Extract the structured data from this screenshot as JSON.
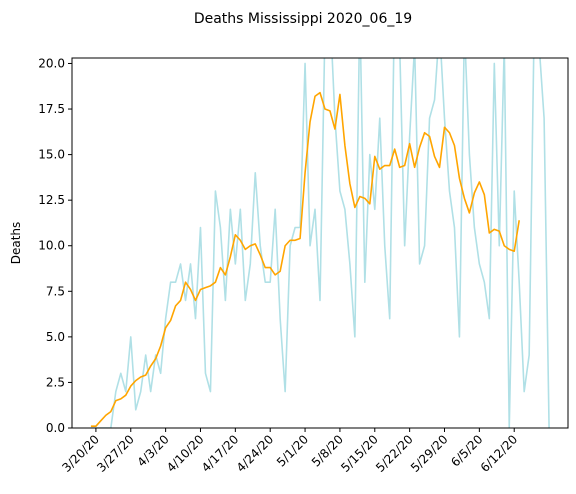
{
  "chart_data": {
    "type": "line",
    "title": "Deaths Mississippi 2020_06_19",
    "xlabel": "",
    "ylabel": "Deaths",
    "ylim": [
      0,
      20.3
    ],
    "x_ticks": [
      "3/20/20",
      "3/27/20",
      "4/3/20",
      "4/10/20",
      "4/17/20",
      "4/24/20",
      "5/1/20",
      "5/8/20",
      "5/15/20",
      "5/22/20",
      "5/29/20",
      "6/5/20",
      "6/12/20"
    ],
    "y_ticks": [
      "0.0",
      "2.5",
      "5.0",
      "7.5",
      "10.0",
      "12.5",
      "15.0",
      "17.5",
      "20.0"
    ],
    "y_tick_values": [
      0,
      2.5,
      5,
      7.5,
      10,
      12.5,
      15,
      17.5,
      20
    ],
    "grid": false,
    "x_dates": [
      "3/19/20",
      "3/20/20",
      "3/21/20",
      "3/22/20",
      "3/23/20",
      "3/24/20",
      "3/25/20",
      "3/26/20",
      "3/27/20",
      "3/28/20",
      "3/29/20",
      "3/30/20",
      "3/31/20",
      "4/1/20",
      "4/2/20",
      "4/3/20",
      "4/4/20",
      "4/5/20",
      "4/6/20",
      "4/7/20",
      "4/8/20",
      "4/9/20",
      "4/10/20",
      "4/11/20",
      "4/12/20",
      "4/13/20",
      "4/14/20",
      "4/15/20",
      "4/16/20",
      "4/17/20",
      "4/18/20",
      "4/19/20",
      "4/20/20",
      "4/21/20",
      "4/22/20",
      "4/23/20",
      "4/24/20",
      "4/25/20",
      "4/26/20",
      "4/27/20",
      "4/28/20",
      "4/29/20",
      "4/30/20",
      "5/1/20",
      "5/2/20",
      "5/3/20",
      "5/4/20",
      "5/5/20",
      "5/6/20",
      "5/7/20",
      "5/8/20",
      "5/9/20",
      "5/10/20",
      "5/11/20",
      "5/12/20",
      "5/13/20",
      "5/14/20",
      "5/15/20",
      "5/16/20",
      "5/17/20",
      "5/18/20",
      "5/19/20",
      "5/20/20",
      "5/21/20",
      "5/22/20",
      "5/23/20",
      "5/24/20",
      "5/25/20",
      "5/26/20",
      "5/27/20",
      "5/28/20",
      "5/29/20",
      "5/30/20",
      "5/31/20",
      "6/1/20",
      "6/2/20",
      "6/3/20",
      "6/4/20",
      "6/5/20",
      "6/6/20",
      "6/7/20",
      "6/8/20",
      "6/9/20",
      "6/10/20",
      "6/11/20",
      "6/12/20",
      "6/13/20",
      "6/14/20",
      "6/15/20",
      "6/16/20",
      "6/17/20",
      "6/18/20",
      "6/19/20"
    ],
    "series": [
      {
        "color": "#b0e0e6",
        "values": [
          0,
          0,
          0,
          0,
          0,
          2,
          3,
          2,
          5,
          1,
          2,
          4,
          2,
          4,
          3,
          6,
          8,
          8,
          9,
          7,
          9,
          6,
          11,
          3,
          2,
          13,
          11,
          7,
          12,
          9,
          12,
          7,
          9,
          14,
          10,
          8,
          8,
          12,
          6,
          2,
          10,
          11,
          11,
          20,
          10,
          12,
          7,
          22,
          23,
          17,
          13,
          12,
          9,
          5,
          23,
          8,
          15,
          12,
          17,
          10,
          6,
          24,
          21,
          10,
          16,
          21,
          9,
          10,
          17,
          18,
          22,
          17,
          13,
          11,
          5,
          22,
          15,
          11,
          9,
          8,
          6,
          20,
          10,
          21,
          0,
          13,
          8,
          2,
          4,
          22,
          21,
          17,
          0
        ]
      },
      {
        "color": "#ffa500",
        "values": [
          0.1,
          0.1,
          0.4,
          0.7,
          0.9,
          1.5,
          1.6,
          1.8,
          2.3,
          2.6,
          2.8,
          2.9,
          3.4,
          3.8,
          4.5,
          5.5,
          5.9,
          6.7,
          7.0,
          8.0,
          7.6,
          7.0,
          7.6,
          7.7,
          7.8,
          8.0,
          8.8,
          8.4,
          9.4,
          10.6,
          10.3,
          9.8,
          10.0,
          10.1,
          9.5,
          8.8,
          8.8,
          8.4,
          8.6,
          10.0,
          10.3,
          10.3,
          10.4,
          14.0,
          16.8,
          18.2,
          18.4,
          17.5,
          17.4,
          16.4,
          18.3,
          15.5,
          13.4,
          12.1,
          12.7,
          12.6,
          12.3,
          14.9,
          14.2,
          14.4,
          14.4,
          15.3,
          14.3,
          14.4,
          15.6,
          14.3,
          15.4,
          16.2,
          16.0,
          14.9,
          14.3,
          16.5,
          16.2,
          15.5,
          13.7,
          12.6,
          11.8,
          12.9,
          13.5,
          12.8,
          10.7,
          10.9,
          10.8,
          10.0,
          9.8,
          9.7,
          11.4
        ]
      }
    ]
  }
}
